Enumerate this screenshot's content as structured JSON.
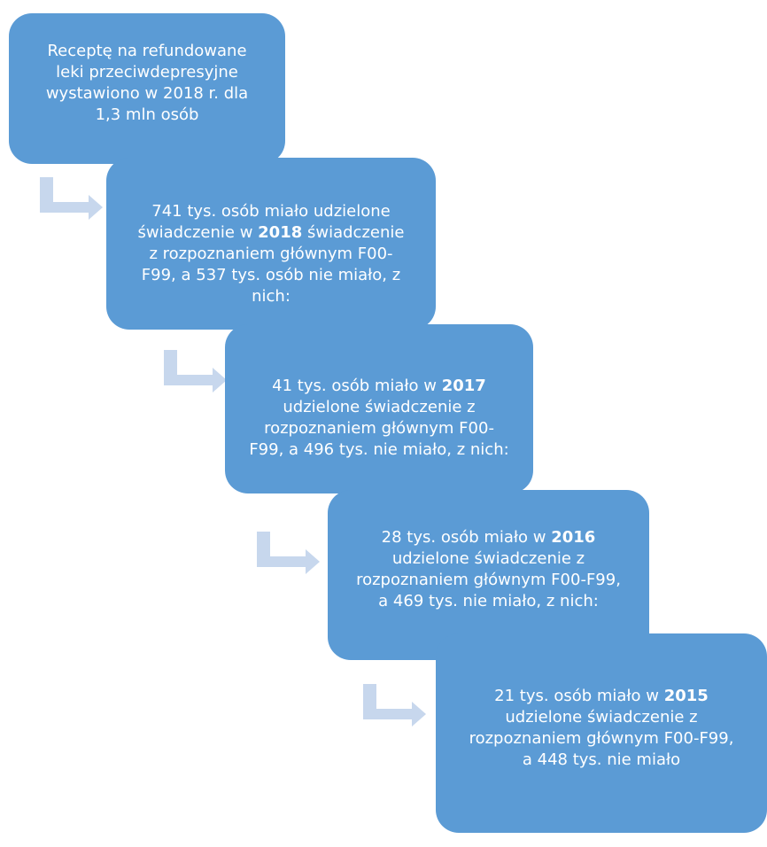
{
  "nodes": [
    {
      "text": "Receptę na refundowane leki przeciwdepresyjne wystawiono w 2018 r. dla 1,3 mln osób"
    },
    {
      "before": "741 tys. osób miało udzielone świadczenie w ",
      "bold": "2018",
      "after": " świadczenie z rozpoznaniem głównym F00-F99, a  537 tys. osób nie miało, z nich:"
    },
    {
      "before": "41 tys. osób miało w ",
      "bold": "2017",
      "after": " udzielone świadczenie z rozpoznaniem głównym F00-F99, a 496 tys. nie miało, z nich:"
    },
    {
      "before": "28 tys. osób miało w ",
      "bold": "2016",
      "after": " udzielone świadczenie z rozpoznaniem głównym F00-F99, a 469 tys. nie miało, z nich:"
    },
    {
      "before": "21 tys. osób miało w ",
      "bold": "2015",
      "after": " udzielone świadczenie z rozpoznaniem głównym F00-F99, a 448 tys. nie miało"
    }
  ]
}
